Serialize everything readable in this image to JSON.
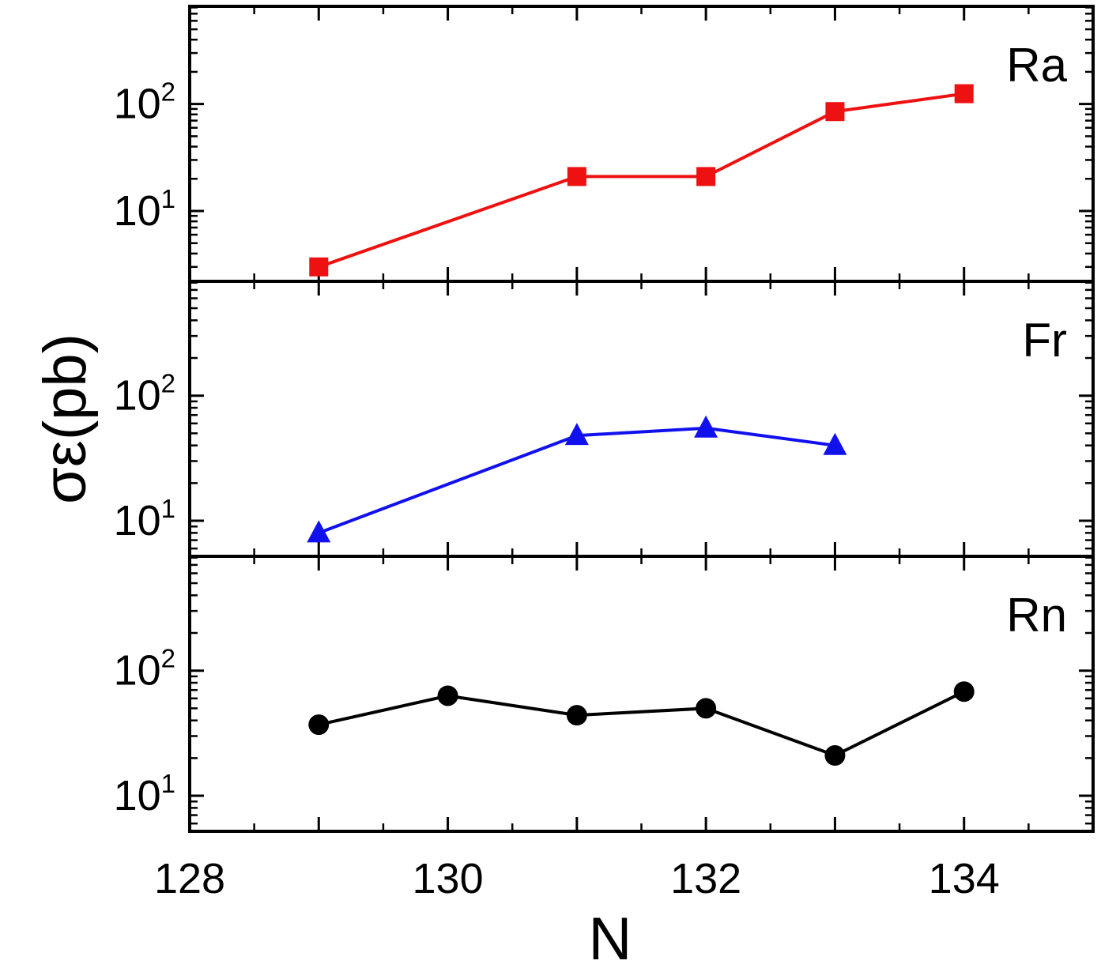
{
  "chart_data": {
    "type": "line",
    "ylabel": "σε(pb)",
    "xlabel": "N",
    "xlim": [
      128,
      135
    ],
    "x_ticks": [
      "128",
      "130",
      "132",
      "134"
    ],
    "y_scale": "log",
    "grid": false,
    "panels": [
      {
        "label": "Ra",
        "color": "#ee1111",
        "marker": "square",
        "ylim": [
          2.2,
          820
        ],
        "y_ticks": [
          {
            "base": "10",
            "exp": "1"
          },
          {
            "base": "10",
            "exp": "2"
          }
        ],
        "series": [
          {
            "x": [
              129,
              131,
              132,
              133,
              134
            ],
            "y": [
              3.0,
              21,
              21,
              85,
              125
            ]
          }
        ]
      },
      {
        "label": "Fr",
        "color": "#1111ee",
        "marker": "triangle",
        "ylim": [
          5.2,
          820
        ],
        "y_ticks": [
          {
            "base": "10",
            "exp": "1"
          },
          {
            "base": "10",
            "exp": "2"
          }
        ],
        "series": [
          {
            "x": [
              129,
              131,
              132,
              133
            ],
            "y": [
              8,
              48,
              55,
              40
            ]
          }
        ]
      },
      {
        "label": "Rn",
        "color": "#000000",
        "marker": "circle",
        "ylim": [
          5.2,
          820
        ],
        "y_ticks": [
          {
            "base": "10",
            "exp": "1"
          },
          {
            "base": "10",
            "exp": "2"
          }
        ],
        "series": [
          {
            "x": [
              129,
              130,
              131,
              132,
              133,
              134
            ],
            "y": [
              37,
              63,
              44,
              50,
              21,
              68
            ]
          }
        ]
      }
    ]
  }
}
